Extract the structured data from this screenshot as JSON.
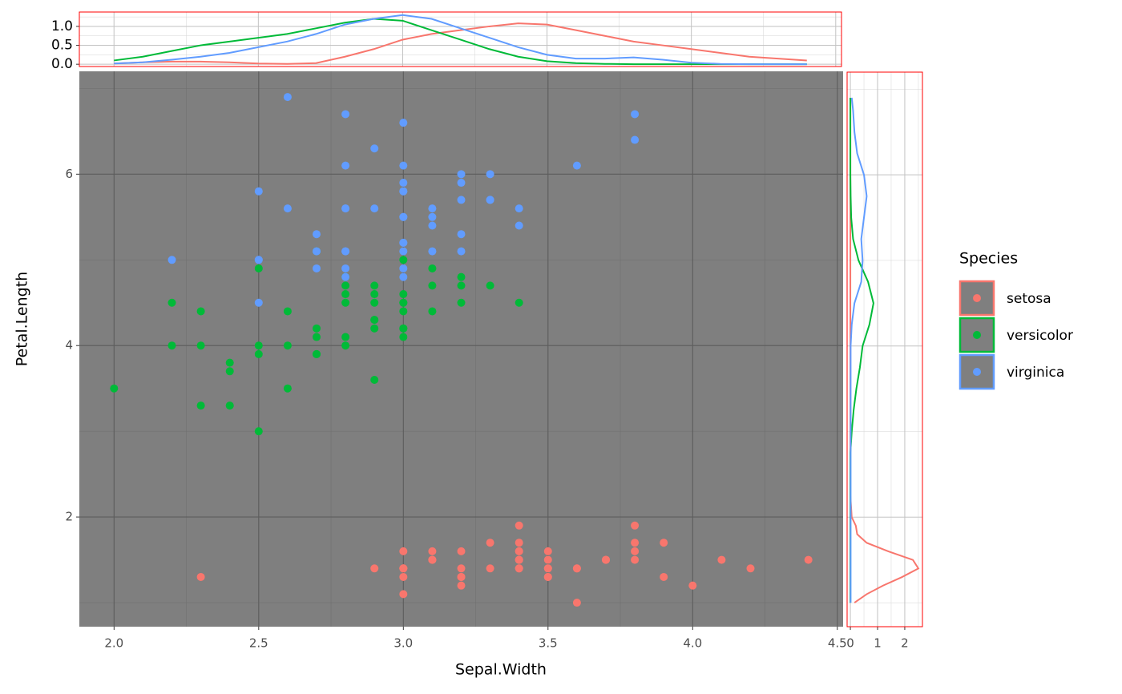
{
  "chart_data": [
    {
      "type": "scatter",
      "x_label": "Sepal.Width",
      "y_label": "Petal.Length",
      "legend_title": "Species",
      "xlim": [
        1.88,
        4.52
      ],
      "ylim": [
        0.72,
        7.2
      ],
      "xticks": [
        {
          "value": 2,
          "label": "2.0"
        },
        2.5,
        {
          "value": 3,
          "label": "3.0"
        },
        3.5,
        {
          "value": 4,
          "label": "4.0"
        },
        4.5
      ],
      "yticks": [
        2,
        4,
        6
      ],
      "xminor": [
        2.25,
        2.75,
        3.25,
        3.75,
        4.25
      ],
      "yminor": [
        1,
        3,
        5,
        7
      ],
      "grid": true,
      "background": "#7f7f7f",
      "legend": "right",
      "series": [
        {
          "name": "setosa",
          "color": "#F8766D",
          "x": [
            3.5,
            3.0,
            3.2,
            3.1,
            3.6,
            3.9,
            3.4,
            3.4,
            2.9,
            3.1,
            3.7,
            3.4,
            3.0,
            3.0,
            4.0,
            4.4,
            3.9,
            3.5,
            3.8,
            3.8,
            3.4,
            3.7,
            3.6,
            3.3,
            3.4,
            3.0,
            3.4,
            3.5,
            3.4,
            3.2,
            3.1,
            3.4,
            4.1,
            4.2,
            3.1,
            3.2,
            3.5,
            3.6,
            3.0,
            3.4,
            3.5,
            2.3,
            3.2,
            3.5,
            3.8,
            3.0,
            3.8,
            3.2,
            3.7,
            3.3
          ],
          "y": [
            1.4,
            1.4,
            1.3,
            1.5,
            1.4,
            1.7,
            1.4,
            1.5,
            1.4,
            1.5,
            1.5,
            1.6,
            1.4,
            1.1,
            1.2,
            1.5,
            1.3,
            1.4,
            1.7,
            1.5,
            1.7,
            1.5,
            1.0,
            1.7,
            1.9,
            1.6,
            1.6,
            1.5,
            1.4,
            1.6,
            1.6,
            1.5,
            1.5,
            1.4,
            1.5,
            1.2,
            1.3,
            1.4,
            1.3,
            1.5,
            1.3,
            1.3,
            1.3,
            1.6,
            1.9,
            1.4,
            1.6,
            1.4,
            1.5,
            1.4
          ]
        },
        {
          "name": "versicolor",
          "color": "#00BA38",
          "x": [
            3.2,
            3.2,
            3.1,
            2.3,
            2.8,
            2.8,
            3.3,
            2.4,
            2.9,
            2.7,
            2.0,
            3.0,
            2.2,
            2.9,
            2.9,
            3.1,
            3.0,
            2.7,
            2.2,
            2.5,
            3.2,
            2.8,
            2.5,
            2.8,
            2.9,
            3.0,
            2.8,
            3.0,
            2.9,
            2.6,
            2.4,
            2.4,
            2.7,
            2.7,
            3.0,
            3.4,
            3.1,
            2.3,
            3.0,
            2.5,
            2.6,
            3.0,
            2.6,
            2.3,
            2.7,
            3.0,
            2.9,
            2.9,
            2.5,
            2.8
          ],
          "y": [
            4.7,
            4.5,
            4.9,
            4.0,
            4.6,
            4.5,
            4.7,
            3.3,
            4.6,
            3.9,
            3.5,
            4.2,
            4.0,
            4.7,
            3.6,
            4.4,
            4.5,
            4.1,
            4.5,
            3.9,
            4.8,
            4.0,
            4.9,
            4.7,
            4.3,
            4.4,
            4.8,
            5.0,
            4.5,
            3.5,
            3.8,
            3.7,
            3.9,
            5.1,
            4.5,
            4.5,
            4.7,
            4.4,
            4.1,
            4.0,
            4.4,
            4.6,
            4.0,
            3.3,
            4.2,
            4.2,
            4.2,
            4.3,
            3.0,
            4.1
          ]
        },
        {
          "name": "virginica",
          "color": "#619CFF",
          "x": [
            3.3,
            2.7,
            3.0,
            2.9,
            3.0,
            3.0,
            2.5,
            2.9,
            2.5,
            3.6,
            3.2,
            2.7,
            3.0,
            2.5,
            2.8,
            3.2,
            3.0,
            3.8,
            2.6,
            2.2,
            3.2,
            2.8,
            2.8,
            2.7,
            3.3,
            3.2,
            2.8,
            3.0,
            2.8,
            3.0,
            2.8,
            3.8,
            2.8,
            2.8,
            2.6,
            3.0,
            3.4,
            3.1,
            3.0,
            3.1,
            3.1,
            3.1,
            2.7,
            3.2,
            3.3,
            3.0,
            2.5,
            3.0,
            3.4,
            3.0
          ],
          "y": [
            6.0,
            5.1,
            5.9,
            5.6,
            5.8,
            6.6,
            4.5,
            6.3,
            5.8,
            6.1,
            5.1,
            5.3,
            5.5,
            5.0,
            5.1,
            5.3,
            5.5,
            6.7,
            6.9,
            5.0,
            5.7,
            4.9,
            6.7,
            4.9,
            5.7,
            6.0,
            4.8,
            4.9,
            5.6,
            5.8,
            6.1,
            6.4,
            5.6,
            5.1,
            5.6,
            6.1,
            5.6,
            5.5,
            4.8,
            5.4,
            5.6,
            5.1,
            5.1,
            5.9,
            5.7,
            5.2,
            5.0,
            5.2,
            5.4,
            5.1
          ]
        }
      ]
    },
    {
      "type": "density",
      "orientation": "vertical",
      "border": "#ff0000",
      "xlim": [
        1.88,
        4.52
      ],
      "ylim": [
        -0.06,
        1.38
      ],
      "yticks": [
        {
          "value": 0,
          "label": "0.0"
        },
        0.5,
        {
          "value": 1,
          "label": "1.0"
        }
      ],
      "yminor": [
        0.25,
        0.75,
        1.25
      ],
      "x": [
        2.0,
        2.1,
        2.2,
        2.3,
        2.4,
        2.5,
        2.6,
        2.7,
        2.8,
        2.9,
        3.0,
        3.1,
        3.2,
        3.3,
        3.4,
        3.5,
        3.6,
        3.7,
        3.8,
        3.9,
        4.0,
        4.1,
        4.2,
        4.3,
        4.4
      ],
      "series": [
        {
          "color": "#F8766D",
          "values": [
            0.02,
            0.05,
            0.07,
            0.07,
            0.05,
            0.02,
            0.01,
            0.03,
            0.2,
            0.4,
            0.65,
            0.8,
            0.9,
            1.0,
            1.08,
            1.05,
            0.9,
            0.75,
            0.6,
            0.5,
            0.4,
            0.3,
            0.2,
            0.15,
            0.1
          ]
        },
        {
          "color": "#00BA38",
          "values": [
            0.1,
            0.2,
            0.35,
            0.5,
            0.6,
            0.7,
            0.8,
            0.95,
            1.1,
            1.2,
            1.15,
            0.9,
            0.65,
            0.4,
            0.2,
            0.08,
            0.03,
            0.01,
            0,
            0,
            0,
            0,
            0,
            0,
            0
          ]
        },
        {
          "color": "#619CFF",
          "values": [
            0.02,
            0.05,
            0.12,
            0.2,
            0.3,
            0.45,
            0.6,
            0.8,
            1.05,
            1.2,
            1.3,
            1.2,
            0.95,
            0.7,
            0.45,
            0.25,
            0.15,
            0.15,
            0.18,
            0.12,
            0.04,
            0.01,
            0,
            0,
            0
          ]
        }
      ]
    },
    {
      "type": "density",
      "orientation": "horizontal",
      "border": "#ff0000",
      "xlim": [
        -0.12,
        2.65
      ],
      "ylim": [
        0.72,
        7.2
      ],
      "xticks": [
        0,
        1,
        2
      ],
      "xminor": [
        0.5,
        1.5,
        2.5
      ],
      "y": [
        1.0,
        1.1,
        1.2,
        1.3,
        1.4,
        1.5,
        1.6,
        1.7,
        1.8,
        1.9,
        2.0,
        2.25,
        2.5,
        2.75,
        3.0,
        3.25,
        3.5,
        3.75,
        4.0,
        4.25,
        4.5,
        4.75,
        5.0,
        5.25,
        5.5,
        5.75,
        6.0,
        6.25,
        6.5,
        6.75,
        6.9
      ],
      "series": [
        {
          "color": "#F8766D",
          "values": [
            0.15,
            0.6,
            1.2,
            1.9,
            2.5,
            2.3,
            1.4,
            0.6,
            0.25,
            0.2,
            0.05,
            0,
            0,
            0,
            0,
            0,
            0,
            0,
            0,
            0,
            0,
            0,
            0,
            0,
            0,
            0,
            0,
            0,
            0,
            0,
            0
          ]
        },
        {
          "color": "#00BA38",
          "values": [
            0,
            0,
            0,
            0,
            0,
            0,
            0,
            0,
            0,
            0,
            0,
            0,
            0,
            0,
            0.05,
            0.12,
            0.22,
            0.35,
            0.45,
            0.7,
            0.85,
            0.65,
            0.3,
            0.1,
            0.03,
            0.01,
            0,
            0,
            0,
            0,
            0
          ]
        },
        {
          "color": "#619CFF",
          "values": [
            0.01,
            0.01,
            0.01,
            0.01,
            0.01,
            0.01,
            0.01,
            0.01,
            0.01,
            0.01,
            0.01,
            0.01,
            0.01,
            0.01,
            0.01,
            0.01,
            0.01,
            0.01,
            0.01,
            0.05,
            0.15,
            0.4,
            0.45,
            0.4,
            0.5,
            0.6,
            0.5,
            0.25,
            0.15,
            0.1,
            0.05
          ]
        }
      ]
    }
  ]
}
